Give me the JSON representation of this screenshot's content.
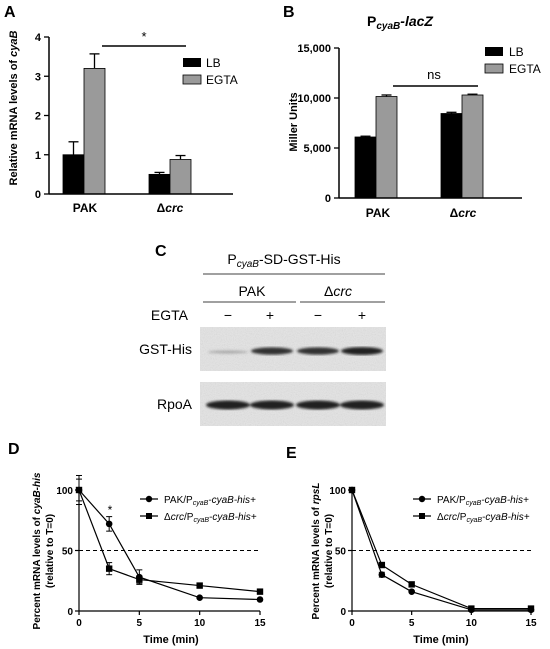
{
  "panels": {
    "A": {
      "letter": "A",
      "ylabel_prefix": "Relative mRNA levels of ",
      "ylabel_gene": "cyaB",
      "yticks": [
        "0",
        "1",
        "2",
        "3",
        "4"
      ],
      "sig": "*",
      "legend": [
        "LB",
        "EGTA"
      ],
      "xlabels": {
        "pak": "PAK",
        "delta": "Δ",
        "crc": "crc"
      }
    },
    "B": {
      "letter": "B",
      "title_p": "P",
      "title_sub": "cyaB",
      "title_rest": "-lacZ",
      "ylabel": "Miller Units",
      "yticks": [
        "0",
        "5,000",
        "10,000",
        "15,000"
      ],
      "sig": "ns",
      "legend": [
        "LB",
        "EGTA"
      ],
      "xlabels": {
        "pak": "PAK",
        "delta": "Δ",
        "crc": "crc"
      }
    },
    "C": {
      "letter": "C",
      "construct_p": "P",
      "construct_sub": "cyaB",
      "construct_rest": "-SD-GST-His",
      "group_pak": "PAK",
      "group_delta": "Δ",
      "group_crc": "crc",
      "egta_label": "EGTA",
      "lane_signs": [
        "−",
        "+",
        "−",
        "+"
      ],
      "band1": "GST-His",
      "band2": "RpoA"
    },
    "D": {
      "letter": "D",
      "ylabel1_prefix": "Percent mRNA levels of ",
      "ylabel1_gene": "cyaB-his",
      "ylabel2": "(relative to T=0)",
      "xlabel": "Time (min)",
      "sig": "*",
      "yticks": [
        "0",
        "50",
        "100"
      ],
      "xticks": [
        "0",
        "5",
        "10",
        "15"
      ],
      "legend1": {
        "pre": "PAK/P",
        "sub": "cyaB",
        "post": "-cyaB-his+"
      },
      "legend2": {
        "pre": "Δ",
        "mid": "crc",
        "pre2": "/P",
        "sub": "cyaB",
        "post": "-cyaB-his+"
      }
    },
    "E": {
      "letter": "E",
      "ylabel1_prefix": "Percent mRNA levels of ",
      "ylabel1_gene": "rpsL",
      "ylabel2": "(relative to T=0)",
      "xlabel": "Time (min)",
      "yticks": [
        "0",
        "50",
        "100"
      ],
      "xticks": [
        "0",
        "5",
        "10",
        "15"
      ],
      "legend1": {
        "pre": "PAK/P",
        "sub": "cyaB",
        "post": "-cyaB-his+"
      },
      "legend2": {
        "pre": "Δ",
        "mid": "crc",
        "pre2": "/P",
        "sub": "cyaB",
        "post": "-cyaB-his+"
      }
    }
  },
  "colors": {
    "lb": "#000000",
    "egta": "#9a9a9a",
    "blot_bg": "#e6e6e6",
    "band": "#222222"
  },
  "chart_data": [
    {
      "panel": "A",
      "type": "bar",
      "categories": [
        "PAK",
        "Δcrc"
      ],
      "series": [
        {
          "name": "LB",
          "values": [
            1.0,
            0.5
          ],
          "errors": [
            0.33,
            0.05
          ]
        },
        {
          "name": "EGTA",
          "values": [
            3.2,
            0.88
          ],
          "errors": [
            0.37,
            0.1
          ]
        }
      ],
      "ylabel": "Relative mRNA levels of cyaB",
      "ylim": [
        0,
        4
      ],
      "legend": "top-right",
      "grid": false
    },
    {
      "panel": "B",
      "type": "bar",
      "categories": [
        "PAK",
        "Δcrc"
      ],
      "series": [
        {
          "name": "LB",
          "values": [
            6100,
            8450
          ],
          "errors": [
            80,
            120
          ]
        },
        {
          "name": "EGTA",
          "values": [
            10150,
            10300
          ],
          "errors": [
            150,
            80
          ]
        }
      ],
      "title": "PcyaB-lacZ",
      "ylabel": "Miller Units",
      "ylim": [
        0,
        15000
      ],
      "legend": "top-right",
      "grid": false
    },
    {
      "panel": "D",
      "type": "line",
      "xlabel": "Time (min)",
      "ylabel": "Percent mRNA levels of cyaB-his (relative to T=0)",
      "xlim": [
        0,
        15
      ],
      "ylim": [
        0,
        100
      ],
      "reference_line": 50,
      "legend": "top-right",
      "series": [
        {
          "name": "PAK/PcyaB-cyaB-his+",
          "marker": "circle",
          "x": [
            0,
            2.5,
            5,
            10,
            15
          ],
          "y": [
            100,
            72,
            28,
            11,
            9.5
          ],
          "errors": [
            9,
            6,
            6,
            1,
            1
          ]
        },
        {
          "name": "Δcrc/PcyaB-cyaB-his+",
          "marker": "square",
          "x": [
            0,
            2.5,
            5,
            10,
            15
          ],
          "y": [
            100,
            35,
            26,
            21,
            16
          ],
          "errors": [
            12,
            5,
            3,
            1,
            1
          ]
        }
      ]
    },
    {
      "panel": "E",
      "type": "line",
      "xlabel": "Time (min)",
      "ylabel": "Percent mRNA levels of rpsL (relative to T=0)",
      "xlim": [
        0,
        15
      ],
      "ylim": [
        0,
        100
      ],
      "reference_line": 50,
      "legend": "top-right",
      "series": [
        {
          "name": "PAK/PcyaB-cyaB-his+",
          "marker": "circle",
          "x": [
            0,
            2.5,
            5,
            10,
            15
          ],
          "y": [
            100,
            30,
            16,
            1,
            1
          ],
          "errors": [
            1,
            2,
            1,
            0.5,
            0.5
          ]
        },
        {
          "name": "Δcrc/PcyaB-cyaB-his+",
          "marker": "square",
          "x": [
            0,
            2.5,
            5,
            10,
            15
          ],
          "y": [
            100,
            38,
            22,
            2,
            2
          ],
          "errors": [
            1,
            2,
            1,
            0.5,
            0.5
          ]
        }
      ]
    }
  ]
}
